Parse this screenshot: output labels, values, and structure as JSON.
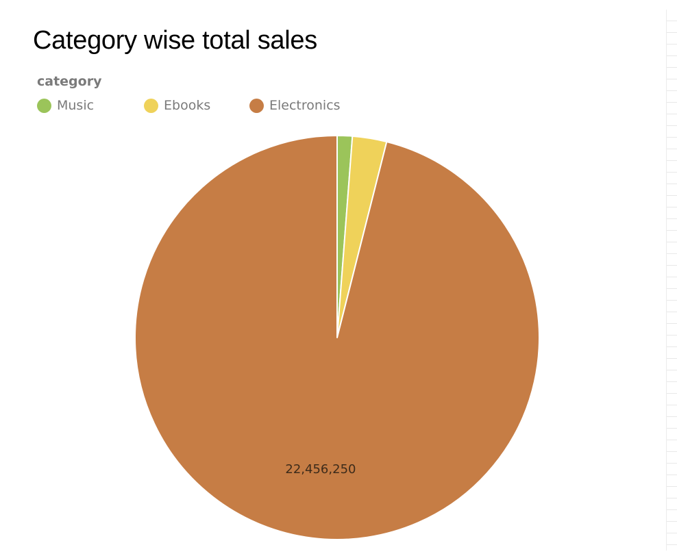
{
  "chart_data": {
    "type": "pie",
    "title": "Category wise total sales",
    "legend": {
      "title": "category",
      "position": "top-left"
    },
    "series": [
      {
        "values": [
          {
            "category": "Music",
            "value": 282000
          },
          {
            "category": "Ebooks",
            "value": 640000
          },
          {
            "category": "Electronics",
            "value": 22456250,
            "label": "22,456,250"
          }
        ]
      }
    ],
    "categories": [
      "Music",
      "Ebooks",
      "Electronics"
    ],
    "colors": {
      "Music": "#9bc45a",
      "Ebooks": "#efd25a",
      "Electronics": "#c67d45"
    }
  }
}
